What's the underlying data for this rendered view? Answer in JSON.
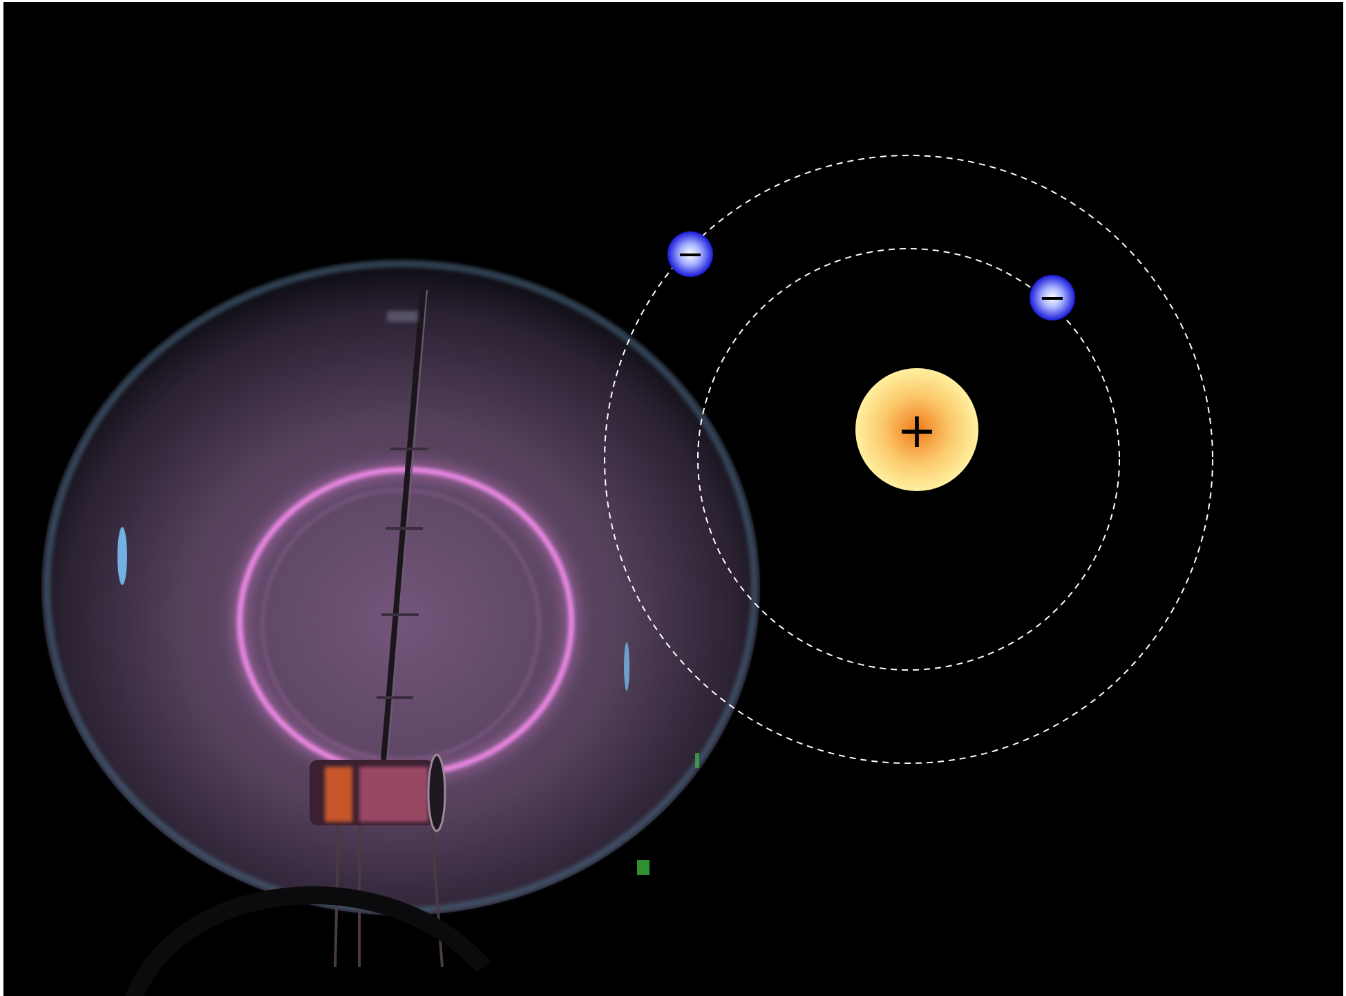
{
  "scene": {
    "background_color": "#000000",
    "photo": {
      "subject": "glowing-glass-bulb-with-electron-ring",
      "ring_color": "#f08ae8",
      "glow_color": "#6b4a6f",
      "glass_edge_color": "#4b6f86"
    }
  },
  "atom": {
    "nucleus": {
      "symbol": "+",
      "color_inner": "#f07a1c",
      "color_outer": "#fff0a0"
    },
    "orbits": [
      {
        "name": "inner-orbit",
        "style": "dashed",
        "color": "#ffffff"
      },
      {
        "name": "outer-orbit",
        "style": "dashed",
        "color": "#ffffff"
      }
    ],
    "electrons": [
      {
        "name": "electron-outer-orbit",
        "symbol": "−",
        "color_inner": "#ffffff",
        "color_outer": "#1a1ad8"
      },
      {
        "name": "electron-inner-orbit",
        "symbol": "−",
        "color_inner": "#ffffff",
        "color_outer": "#1a1ad8"
      }
    ]
  }
}
